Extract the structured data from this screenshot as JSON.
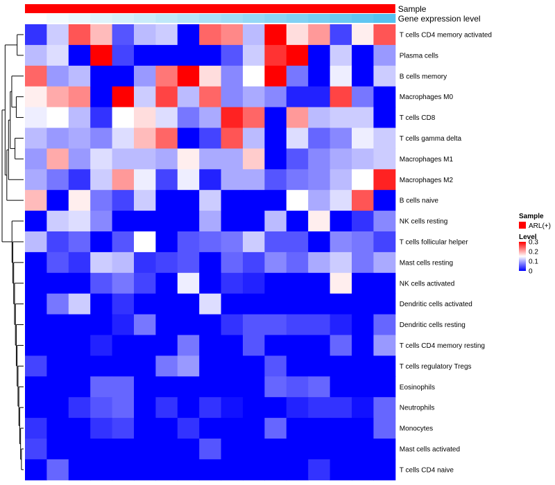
{
  "chart_data": {
    "type": "heatmap",
    "title": "",
    "column_annotations": [
      {
        "name": "Sample",
        "color": "#ff0000"
      },
      {
        "name": "Gene expression level",
        "gradient": [
          "#ffffff",
          "#55c1f0"
        ]
      }
    ],
    "rows": [
      "T cells CD4 memory activated",
      "Plasma cells",
      "B cells memory",
      "Macrophages M0",
      "T cells CD8",
      "T cells gamma delta",
      "Macrophages M1",
      "Macrophages M2",
      "B cells naive",
      "NK cells resting",
      "T cells follicular helper",
      "Mast cells resting",
      "NK cells activated",
      "Dendritic cells activated",
      "Dendritic cells resting",
      "T cells CD4 memory resting",
      "T cells regulatory  Tregs",
      "Eosinophils",
      "Neutrophils",
      "Monocytes",
      "Mast cells activated",
      "T cells CD4 naive"
    ],
    "n_columns": 17,
    "values": [
      [
        0.03,
        0.12,
        0.25,
        0.19,
        0.05,
        0.11,
        0.12,
        0.0,
        0.24,
        0.22,
        0.11,
        0.3,
        0.17,
        0.21,
        0.04,
        0.16,
        0.25
      ],
      [
        0.11,
        0.13,
        0.0,
        0.3,
        0.04,
        0.0,
        0.0,
        0.0,
        0.0,
        0.05,
        0.12,
        0.27,
        0.3,
        0.0,
        0.12,
        0.0,
        0.09
      ],
      [
        0.24,
        0.09,
        0.11,
        0.0,
        0.0,
        0.09,
        0.23,
        0.3,
        0.17,
        0.08,
        0.15,
        0.3,
        0.07,
        0.0,
        0.14,
        0.0,
        0.12
      ],
      [
        0.16,
        0.2,
        0.22,
        0.0,
        0.3,
        0.12,
        0.26,
        0.11,
        0.24,
        0.08,
        0.1,
        0.08,
        0.02,
        0.02,
        0.26,
        0.07,
        0.0
      ],
      [
        0.14,
        0.15,
        0.11,
        0.03,
        0.15,
        0.17,
        0.13,
        0.07,
        0.1,
        0.28,
        0.24,
        0.0,
        0.21,
        0.11,
        0.12,
        0.12,
        0.0
      ],
      [
        0.11,
        0.09,
        0.1,
        0.08,
        0.13,
        0.19,
        0.24,
        0.0,
        0.04,
        0.25,
        0.11,
        0.0,
        0.13,
        0.06,
        0.08,
        0.14,
        0.12
      ],
      [
        0.09,
        0.2,
        0.09,
        0.13,
        0.11,
        0.11,
        0.1,
        0.16,
        0.1,
        0.1,
        0.18,
        0.0,
        0.05,
        0.08,
        0.1,
        0.11,
        0.12
      ],
      [
        0.1,
        0.07,
        0.03,
        0.12,
        0.21,
        0.14,
        0.04,
        0.14,
        0.02,
        0.1,
        0.1,
        0.05,
        0.07,
        0.08,
        0.11,
        0.15,
        0.28
      ],
      [
        0.19,
        0.0,
        0.16,
        0.07,
        0.04,
        0.12,
        0.0,
        0.0,
        0.12,
        0.0,
        0.0,
        0.0,
        0.15,
        0.1,
        0.13,
        0.25,
        0.0
      ],
      [
        0.0,
        0.12,
        0.13,
        0.08,
        0.0,
        0.0,
        0.0,
        0.0,
        0.1,
        0.0,
        0.0,
        0.11,
        0.0,
        0.16,
        0.0,
        0.03,
        0.08
      ],
      [
        0.11,
        0.04,
        0.06,
        0.0,
        0.05,
        0.15,
        0.0,
        0.05,
        0.06,
        0.07,
        0.12,
        0.05,
        0.05,
        0.0,
        0.08,
        0.07,
        0.04
      ],
      [
        0.0,
        0.05,
        0.03,
        0.12,
        0.11,
        0.03,
        0.04,
        0.05,
        0.0,
        0.06,
        0.04,
        0.08,
        0.06,
        0.1,
        0.12,
        0.07,
        0.1
      ],
      [
        0.0,
        0.0,
        0.0,
        0.05,
        0.07,
        0.04,
        0.0,
        0.14,
        0.0,
        0.03,
        0.02,
        0.0,
        0.0,
        0.0,
        0.16,
        0.0,
        0.0
      ],
      [
        0.0,
        0.07,
        0.12,
        0.0,
        0.03,
        0.0,
        0.0,
        0.0,
        0.13,
        0.0,
        0.0,
        0.0,
        0.0,
        0.0,
        0.0,
        0.0,
        0.0
      ],
      [
        0.0,
        0.0,
        0.0,
        0.0,
        0.02,
        0.07,
        0.0,
        0.0,
        0.0,
        0.03,
        0.05,
        0.05,
        0.04,
        0.04,
        0.02,
        0.0,
        0.06
      ],
      [
        0.0,
        0.0,
        0.0,
        0.02,
        0.0,
        0.0,
        0.0,
        0.07,
        0.0,
        0.0,
        0.05,
        0.0,
        0.0,
        0.0,
        0.06,
        0.0,
        0.09
      ],
      [
        0.04,
        0.0,
        0.0,
        0.0,
        0.0,
        0.0,
        0.07,
        0.09,
        0.0,
        0.0,
        0.0,
        0.05,
        0.0,
        0.0,
        0.0,
        0.0,
        0.0
      ],
      [
        0.0,
        0.0,
        0.0,
        0.06,
        0.06,
        0.0,
        0.0,
        0.0,
        0.0,
        0.0,
        0.0,
        0.06,
        0.05,
        0.06,
        0.0,
        0.0,
        0.0
      ],
      [
        0.0,
        0.0,
        0.03,
        0.05,
        0.06,
        0.0,
        0.03,
        0.0,
        0.03,
        0.01,
        0.0,
        0.0,
        0.02,
        0.03,
        0.03,
        0.01,
        0.06
      ],
      [
        0.03,
        0.0,
        0.0,
        0.03,
        0.04,
        0.0,
        0.0,
        0.03,
        0.0,
        0.0,
        0.0,
        0.06,
        0.0,
        0.0,
        0.0,
        0.0,
        0.06
      ],
      [
        0.04,
        0.0,
        0.0,
        0.0,
        0.0,
        0.0,
        0.0,
        0.0,
        0.05,
        0.0,
        0.0,
        0.0,
        0.0,
        0.0,
        0.0,
        0.0,
        0.0
      ],
      [
        0.0,
        0.06,
        0.0,
        0.0,
        0.0,
        0.0,
        0.0,
        0.0,
        0.0,
        0.0,
        0.0,
        0.0,
        0.0,
        0.03,
        0.0,
        0.0,
        0.0
      ]
    ],
    "color_scale": {
      "min": 0,
      "mid": 0.15,
      "max": 0.3,
      "low": "#0000ff",
      "mid_color": "#ffffff",
      "high": "#ff0000"
    },
    "legend": {
      "placement": "right",
      "sample_title": "Sample",
      "sample_entry": "ARL(+)",
      "level_title": "Level",
      "level_ticks": [
        "0.3",
        "0.2",
        "0.1",
        "0"
      ]
    },
    "row_dendrogram": "left"
  }
}
